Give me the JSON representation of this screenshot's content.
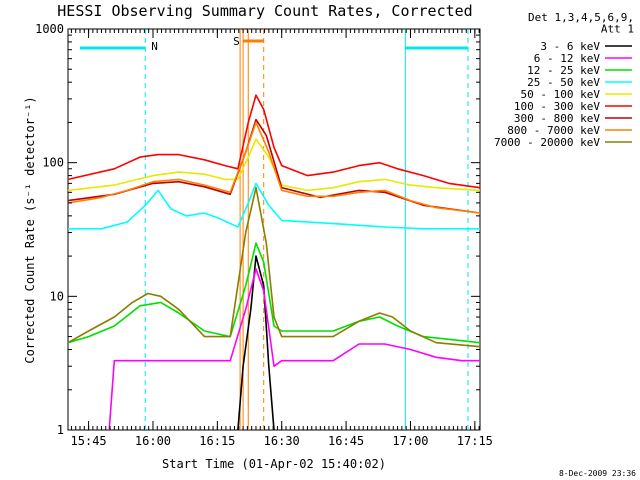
{
  "chart_data": {
    "type": "line",
    "title": "HESSI Observing Summary Count Rates, Corrected",
    "xlabel": "Start Time (01-Apr-02 15:40:02)",
    "ylabel": "Corrected Count Rate (s⁻¹ detector⁻¹)",
    "y_scale": "log",
    "ylim": [
      1,
      1000
    ],
    "xlim_minutes": [
      15.67,
      17.27
    ],
    "x_ticks": [
      "15:45",
      "16:00",
      "16:15",
      "16:30",
      "16:45",
      "17:00",
      "17:15"
    ],
    "x_tick_hours": [
      15.75,
      16.0,
      16.25,
      16.5,
      16.75,
      17.0,
      17.25
    ],
    "y_ticks": [
      "1",
      "10",
      "100",
      "1000"
    ],
    "y_tick_values": [
      1,
      10,
      100,
      1000
    ],
    "grid": false,
    "legend_placement": "right",
    "legend_header": [
      "Det 1,3,4,5,6,9,",
      "Att 1"
    ],
    "annotations": {
      "night_label": "N",
      "saa_label": "S",
      "night_start": 15.97,
      "night_end": 16.98,
      "night_end2": 17.27,
      "saa_start": 16.35,
      "saa_end": 16.43,
      "attenuator_lines": [
        16.35,
        16.37
      ]
    },
    "series": [
      {
        "name": "3 - 6 keV",
        "color": "#000000",
        "x": [
          16.33,
          16.35,
          16.38,
          16.4,
          16.43,
          16.45,
          16.47
        ],
        "y": [
          1,
          3,
          8,
          20,
          12,
          3,
          1
        ]
      },
      {
        "name": "6 - 12 keV",
        "color": "#ff00ff",
        "x": [
          15.83,
          15.85,
          16.0,
          16.15,
          16.3,
          16.36,
          16.4,
          16.43,
          16.47,
          16.5,
          16.7,
          16.8,
          16.9,
          17.0,
          17.1,
          17.2,
          17.27
        ],
        "y": [
          1,
          3.3,
          3.3,
          3.3,
          3.3,
          8,
          16,
          11,
          3,
          3.3,
          3.3,
          4.4,
          4.4,
          4.0,
          3.5,
          3.3,
          3.3
        ]
      },
      {
        "name": "12 - 25 keV",
        "color": "#00e000",
        "x": [
          15.67,
          15.75,
          15.85,
          15.95,
          16.03,
          16.1,
          16.2,
          16.3,
          16.36,
          16.4,
          16.43,
          16.47,
          16.5,
          16.7,
          16.8,
          16.88,
          16.95,
          17.05,
          17.27
        ],
        "y": [
          4.5,
          5,
          6,
          8.5,
          9,
          7.5,
          5.5,
          5,
          12,
          25,
          18,
          6,
          5.5,
          5.5,
          6.5,
          7,
          6,
          5,
          4.5
        ]
      },
      {
        "name": "25 - 50 keV",
        "color": "#00ffff",
        "x": [
          15.67,
          15.8,
          15.9,
          15.97,
          16.02,
          16.07,
          16.13,
          16.2,
          16.26,
          16.33,
          16.37,
          16.4,
          16.45,
          16.5,
          16.7,
          16.9,
          17.05,
          17.27
        ],
        "y": [
          32,
          32,
          36,
          48,
          62,
          45,
          40,
          42,
          38,
          33,
          50,
          70,
          48,
          37,
          35,
          33,
          32,
          32
        ]
      },
      {
        "name": "50 - 100 keV",
        "color": "#e8e800",
        "x": [
          15.67,
          15.85,
          16.0,
          16.1,
          16.2,
          16.28,
          16.33,
          16.37,
          16.4,
          16.45,
          16.5,
          16.6,
          16.7,
          16.8,
          16.9,
          17.0,
          17.1,
          17.27
        ],
        "y": [
          62,
          68,
          80,
          85,
          82,
          75,
          75,
          110,
          150,
          110,
          68,
          62,
          65,
          72,
          75,
          68,
          65,
          62
        ]
      },
      {
        "name": "100 - 300 keV",
        "color": "#ff0000",
        "x": [
          15.67,
          15.85,
          15.95,
          16.02,
          16.1,
          16.2,
          16.28,
          16.33,
          16.37,
          16.4,
          16.43,
          16.47,
          16.5,
          16.6,
          16.7,
          16.8,
          16.88,
          16.95,
          17.05,
          17.15,
          17.27
        ],
        "y": [
          75,
          90,
          110,
          115,
          115,
          105,
          95,
          90,
          200,
          320,
          250,
          130,
          95,
          80,
          85,
          95,
          100,
          90,
          80,
          70,
          65
        ]
      },
      {
        "name": "300 - 800 keV",
        "color": "#c00000",
        "x": [
          15.67,
          15.85,
          16.0,
          16.1,
          16.2,
          16.3,
          16.36,
          16.4,
          16.44,
          16.5,
          16.65,
          16.8,
          16.9,
          17.05,
          17.27
        ],
        "y": [
          52,
          58,
          70,
          72,
          66,
          58,
          120,
          210,
          160,
          65,
          55,
          62,
          60,
          48,
          42
        ]
      },
      {
        "name": "800 - 7000 keV",
        "color": "#ff8000",
        "x": [
          15.67,
          15.8,
          15.9,
          16.0,
          16.1,
          16.2,
          16.3,
          16.36,
          16.4,
          16.45,
          16.5,
          16.6,
          16.7,
          16.8,
          16.9,
          17.0,
          17.1,
          17.27
        ],
        "y": [
          50,
          55,
          62,
          72,
          75,
          68,
          60,
          120,
          200,
          120,
          62,
          56,
          56,
          60,
          62,
          52,
          46,
          42
        ]
      },
      {
        "name": "7000 - 20000 keV",
        "color": "#8b7d00",
        "x": [
          15.67,
          15.75,
          15.85,
          15.92,
          15.98,
          16.03,
          16.1,
          16.2,
          16.3,
          16.36,
          16.4,
          16.44,
          16.47,
          16.5,
          16.7,
          16.8,
          16.88,
          16.93,
          17.0,
          17.1,
          17.27
        ],
        "y": [
          4.5,
          5.5,
          7,
          9,
          10.5,
          10,
          8,
          5,
          5,
          30,
          65,
          25,
          7,
          5,
          5,
          6.5,
          7.5,
          7,
          5.5,
          4.5,
          4.2
        ]
      }
    ]
  },
  "footer_date": "8-Dec-2009 23:36"
}
